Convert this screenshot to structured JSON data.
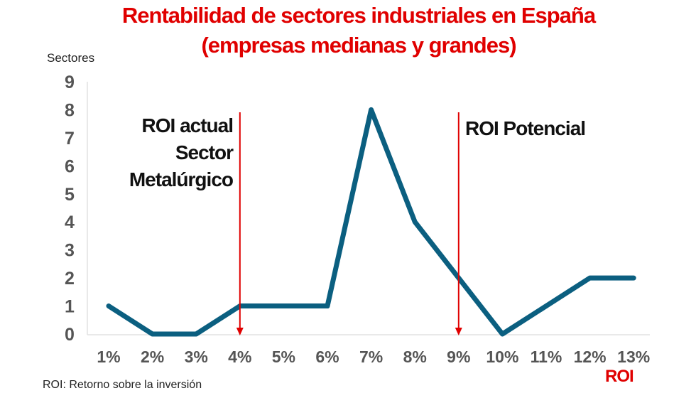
{
  "chart_data": {
    "type": "line",
    "title": "Rentabilidad de sectores industriales en España",
    "subtitle": "(empresas medianas y grandes)",
    "ylabel": "Sectores",
    "xlabel": "ROI",
    "categories": [
      "1%",
      "2%",
      "3%",
      "4%",
      "5%",
      "6%",
      "7%",
      "8%",
      "9%",
      "10%",
      "11%",
      "12%",
      "13%"
    ],
    "values": [
      1,
      0,
      0,
      1,
      1,
      1,
      8,
      4,
      2,
      0,
      1,
      2,
      2
    ],
    "yticks": [
      "0",
      "1",
      "2",
      "3",
      "4",
      "5",
      "6",
      "7",
      "8",
      "9"
    ],
    "ylim": [
      0,
      9
    ],
    "grid": false,
    "line_color": "#0b5f80",
    "annotations": [
      {
        "category": "4%",
        "lines": [
          "ROI actual",
          "Sector",
          "Metalúrgico"
        ],
        "color": "#e00000"
      },
      {
        "category": "9%",
        "lines": [
          "ROI Potencial"
        ],
        "color": "#e00000"
      }
    ],
    "footnote": "ROI: Retorno sobre la inversión"
  }
}
